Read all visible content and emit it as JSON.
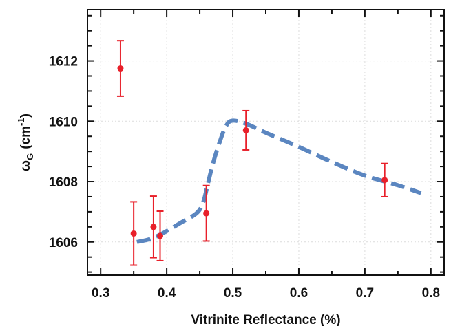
{
  "chart_data": {
    "type": "scatter",
    "title": "",
    "xlabel": "Vitrinite Reflectance (%)",
    "ylabel": "ωG (cm-1)",
    "ylabel_parts": {
      "symbol": "ω",
      "subscript": "G",
      "unit_base": "(cm",
      "unit_sup": "-1",
      "unit_close": ")"
    },
    "xlim": [
      0.28,
      0.82
    ],
    "ylim": [
      1604.9,
      1613.7
    ],
    "x_ticks": [
      0.3,
      0.4,
      0.5,
      0.6,
      0.7,
      0.8
    ],
    "x_tick_labels": [
      "0.3",
      "0.4",
      "0.5",
      "0.6",
      "0.7",
      "0.8"
    ],
    "y_ticks": [
      1606,
      1608,
      1610,
      1612
    ],
    "y_tick_labels": [
      "1606",
      "1608",
      "1610",
      "1612"
    ],
    "grid": true,
    "points": [
      {
        "x": 0.33,
        "y": 1611.75,
        "err": 0.92
      },
      {
        "x": 0.35,
        "y": 1606.28,
        "err": 1.05
      },
      {
        "x": 0.38,
        "y": 1606.5,
        "err": 1.02
      },
      {
        "x": 0.39,
        "y": 1606.2,
        "err": 0.82
      },
      {
        "x": 0.46,
        "y": 1606.95,
        "err": 0.92
      },
      {
        "x": 0.52,
        "y": 1609.7,
        "err": 0.65
      },
      {
        "x": 0.73,
        "y": 1608.05,
        "err": 0.55
      }
    ],
    "trend_line": [
      [
        0.355,
        1606.0
      ],
      [
        0.375,
        1606.1
      ],
      [
        0.395,
        1606.3
      ],
      [
        0.42,
        1606.62
      ],
      [
        0.445,
        1606.95
      ],
      [
        0.455,
        1607.3
      ],
      [
        0.462,
        1607.9
      ],
      [
        0.47,
        1608.6
      ],
      [
        0.48,
        1609.3
      ],
      [
        0.49,
        1609.85
      ],
      [
        0.5,
        1610.02
      ],
      [
        0.52,
        1609.92
      ],
      [
        0.55,
        1609.62
      ],
      [
        0.6,
        1609.15
      ],
      [
        0.65,
        1608.65
      ],
      [
        0.7,
        1608.2
      ],
      [
        0.75,
        1607.88
      ],
      [
        0.785,
        1607.62
      ]
    ],
    "colors": {
      "points": "#e8202a",
      "trend": "#5b86c0"
    }
  }
}
